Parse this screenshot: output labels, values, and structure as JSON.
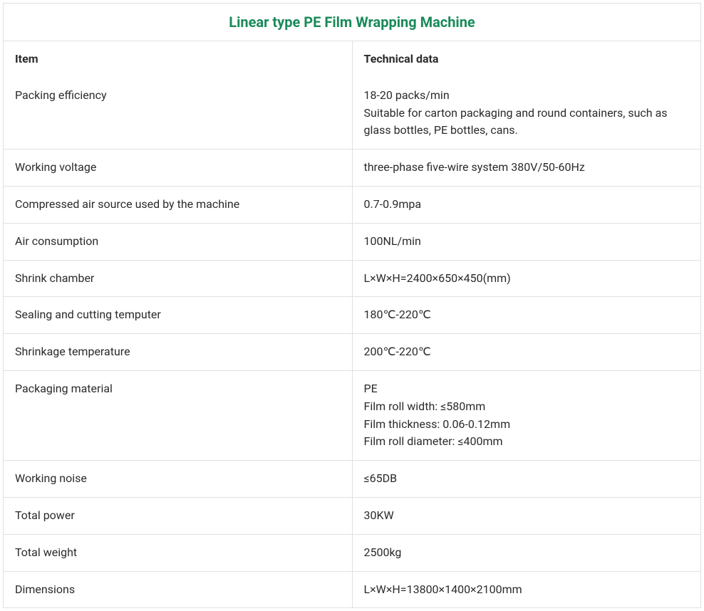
{
  "title": {
    "text": "Linear type PE Film Wrapping Machine",
    "color": "#1a8a5a"
  },
  "headers": {
    "item": "Item",
    "data": "Technical data"
  },
  "rows": [
    {
      "item": "Packing efficiency",
      "data_lines": [
        "18-20 packs/min",
        "Suitable for carton packaging and round containers, such as glass bottles, PE bottles, cans."
      ]
    },
    {
      "item": "Working voltage",
      "data_lines": [
        "three-phase five-wire system 380V/50-60Hz"
      ]
    },
    {
      "item": "Compressed air source used by the machine",
      "data_lines": [
        "0.7-0.9mpa"
      ]
    },
    {
      "item": "Air consumption",
      "data_lines": [
        "100NL/min"
      ]
    },
    {
      "item": "Shrink chamber",
      "data_lines": [
        "L×W×H=2400×650×450(mm)"
      ]
    },
    {
      "item": "Sealing and cutting temputer",
      "data_lines": [
        "180℃-220℃"
      ]
    },
    {
      "item": "Shrinkage temperature",
      "data_lines": [
        "200℃-220℃"
      ]
    },
    {
      "item": "Packaging material",
      "data_lines": [
        "PE",
        "Film roll width: ≤580mm",
        "Film thickness: 0.06-0.12mm",
        "Film roll diameter: ≤400mm"
      ]
    },
    {
      "item": "Working noise",
      "data_lines": [
        "≤65DB"
      ]
    },
    {
      "item": "Total power",
      "data_lines": [
        "30KW"
      ]
    },
    {
      "item": "Total weight",
      "data_lines": [
        "2500kg"
      ]
    },
    {
      "item": "Dimensions",
      "data_lines": [
        "L×W×H=13800×1400×2100mm"
      ]
    }
  ],
  "style": {
    "border_color": "#e0e0e0",
    "text_color": "#2b2b2b",
    "font_size_body": 16,
    "font_size_title": 20
  }
}
